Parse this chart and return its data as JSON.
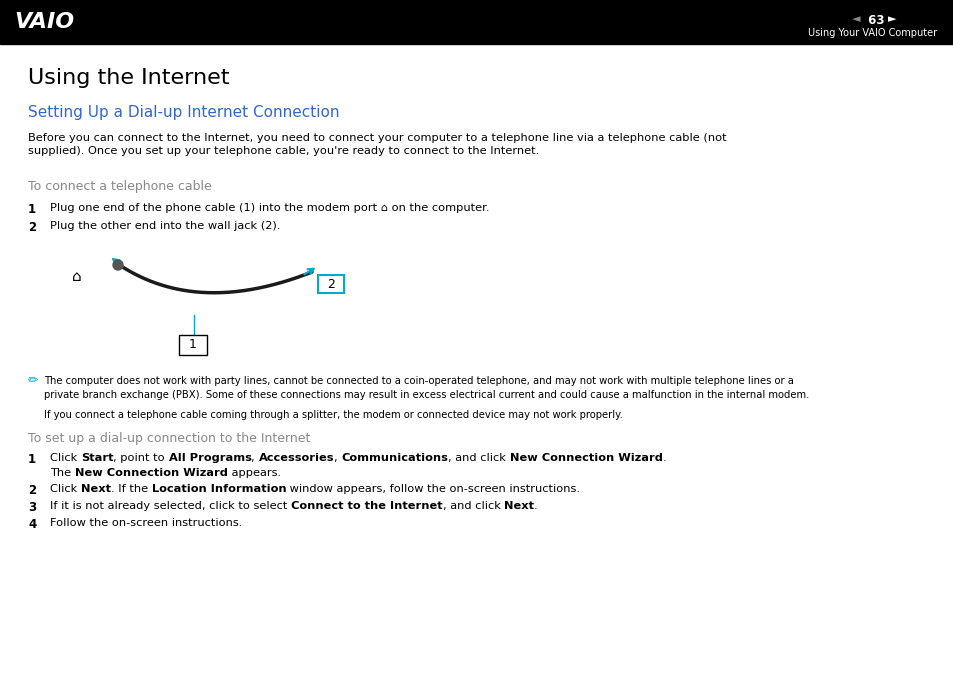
{
  "bg_color": "#ffffff",
  "header_bg": "#000000",
  "header_text_color": "#ffffff",
  "header_page_num": "63",
  "header_right_text": "Using Your VAIO Computer",
  "main_title": "Using the Internet",
  "section_title": "Setting Up a Dial-up Internet Connection",
  "section_title_color": "#3366cc",
  "body_color": "#000000",
  "gray_color": "#888888",
  "cyan_color": "#00aacc",
  "intro_text": "Before you can connect to the Internet, you need to connect your computer to a telephone line via a telephone cable (not\nsupplied). Once you set up your telephone cable, you're ready to connect to the Internet.",
  "subsection1": "To connect a telephone cable",
  "step1_text": "Plug one end of the phone cable (1) into the modem port ⌂ on the computer.",
  "step2_text": "Plug the other end into the wall jack (2).",
  "note_text1": "The computer does not work with party lines, cannot be connected to a coin-operated telephone, and may not work with multiple telephone lines or a\nprivate branch exchange (PBX). Some of these connections may result in excess electrical current and could cause a malfunction in the internal modem.",
  "note_text2": "If you connect a telephone cable coming through a splitter, the modem or connected device may not work properly.",
  "subsection2": "To set up a dial-up connection to the Internet",
  "s2_step4_plain": "Follow the on-screen instructions."
}
